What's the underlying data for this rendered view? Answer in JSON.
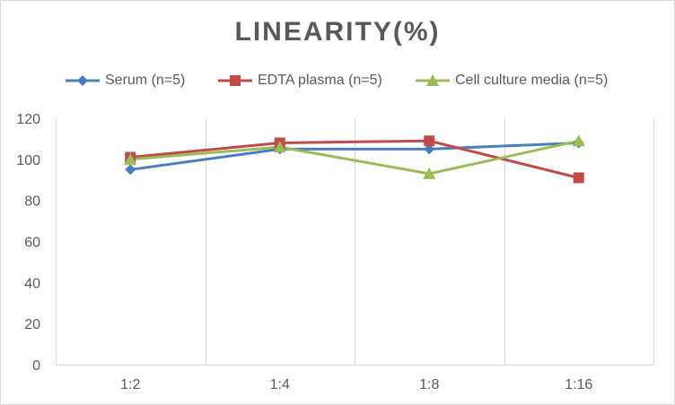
{
  "chart_data": {
    "type": "line",
    "title": "LINEARITY(%)",
    "categories": [
      "1:2",
      "1:4",
      "1:8",
      "1:16"
    ],
    "ylim": [
      0,
      120
    ],
    "yticks": [
      0,
      20,
      40,
      60,
      80,
      100,
      120
    ],
    "grid": "vertical",
    "legend_position": "top",
    "series": [
      {
        "name": "Serum (n=5)",
        "values": [
          95,
          105,
          105,
          108
        ],
        "color": "#4a7ebb",
        "marker": "diamond"
      },
      {
        "name": "EDTA plasma (n=5)",
        "values": [
          101,
          108,
          109,
          91
        ],
        "color": "#be4b48",
        "marker": "square"
      },
      {
        "name": "Cell culture media (n=5)",
        "values": [
          100,
          106,
          93,
          109
        ],
        "color": "#9bbb59",
        "marker": "triangle"
      }
    ]
  }
}
